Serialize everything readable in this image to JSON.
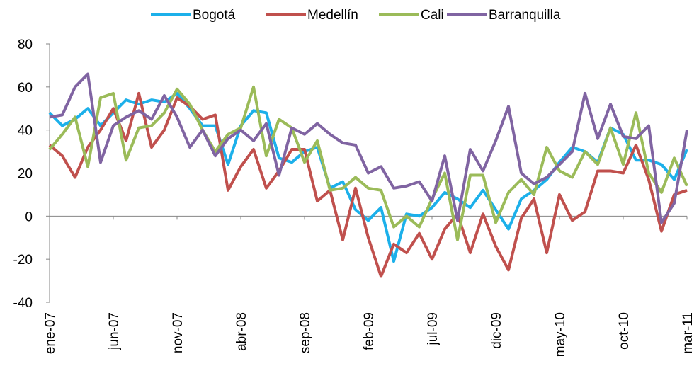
{
  "chart_data": {
    "type": "line",
    "categories": [
      "ene-07",
      null,
      null,
      null,
      null,
      "jun-07",
      null,
      null,
      null,
      null,
      "nov-07",
      null,
      null,
      null,
      null,
      "abr-08",
      null,
      null,
      null,
      null,
      "sep-08",
      null,
      null,
      null,
      null,
      "feb-09",
      null,
      null,
      null,
      null,
      "jul-09",
      null,
      null,
      null,
      null,
      "dic-09",
      null,
      null,
      null,
      null,
      "may-10",
      null,
      null,
      null,
      null,
      "oct-10",
      null,
      null,
      null,
      null,
      "mar-11"
    ],
    "series": [
      {
        "name": "Bogotá",
        "color": "#1cb0ea",
        "values": [
          48,
          42,
          45,
          50,
          42,
          48,
          54,
          52,
          54,
          53,
          57,
          50,
          42,
          42,
          24,
          42,
          49,
          48,
          27,
          25,
          30,
          32,
          13,
          16,
          3,
          -2,
          4,
          -21,
          1,
          0,
          4,
          11,
          8,
          4,
          12,
          3,
          -6,
          8,
          12,
          17,
          25,
          32,
          30,
          25,
          41,
          38,
          26,
          26,
          24,
          17,
          31
        ]
      },
      {
        "name": "Medellín",
        "color": "#c0504d",
        "values": [
          33,
          28,
          18,
          32,
          40,
          50,
          35,
          57,
          32,
          40,
          55,
          51,
          45,
          47,
          12,
          23,
          31,
          13,
          21,
          31,
          31,
          7,
          12,
          -11,
          13,
          -10,
          -28,
          -13,
          -17,
          -8,
          -20,
          -6,
          1,
          -17,
          1,
          -14,
          -25,
          -1,
          8,
          -17,
          10,
          -2,
          2,
          21,
          21,
          20,
          33,
          17,
          -7,
          10,
          12
        ]
      },
      {
        "name": "Cali",
        "color": "#9bbb59",
        "values": [
          31,
          38,
          46,
          23,
          55,
          57,
          26,
          41,
          42,
          48,
          59,
          52,
          40,
          30,
          38,
          41,
          60,
          28,
          45,
          41,
          25,
          35,
          12,
          13,
          18,
          13,
          12,
          -5,
          0,
          -5,
          8,
          20,
          -11,
          19,
          19,
          -3,
          11,
          17,
          10,
          32,
          21,
          18,
          30,
          24,
          41,
          24,
          48,
          20,
          11,
          27,
          14
        ]
      },
      {
        "name": "Barranquilla",
        "color": "#8064a2",
        "values": [
          46,
          47,
          60,
          66,
          25,
          42,
          46,
          49,
          45,
          56,
          46,
          32,
          40,
          28,
          36,
          40,
          35,
          43,
          19,
          41,
          38,
          43,
          38,
          34,
          33,
          20,
          23,
          13,
          14,
          16,
          7,
          28,
          -2,
          31,
          21,
          35,
          51,
          20,
          15,
          18,
          24,
          30,
          57,
          36,
          52,
          37,
          36,
          42,
          -3,
          6,
          40
        ]
      }
    ],
    "ylim": [
      -40,
      80
    ],
    "yticks": [
      -40,
      -20,
      0,
      20,
      40,
      60,
      80
    ]
  }
}
